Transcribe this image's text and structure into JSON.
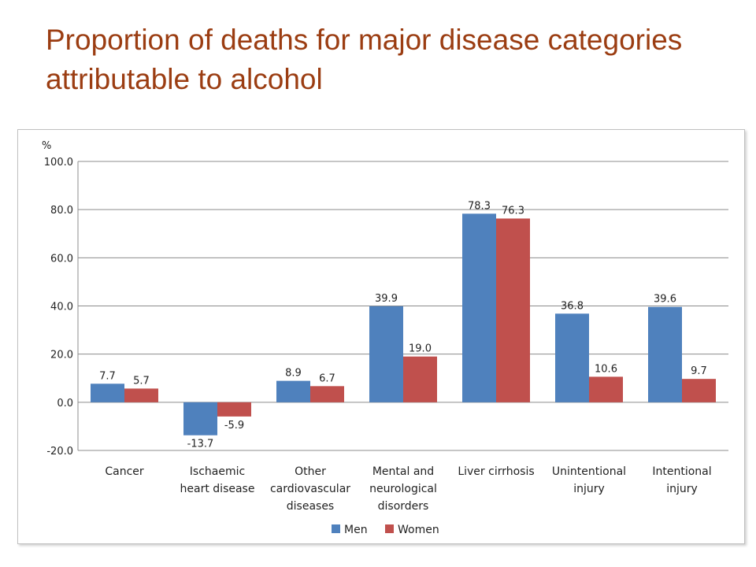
{
  "slide": {
    "title": "Proportion of deaths for major disease categories attributable to alcohol"
  },
  "chart_data": {
    "type": "bar",
    "title": "",
    "ylabel": "%",
    "xlabel": "",
    "ylim": [
      -20,
      100
    ],
    "yticks": [
      "100.0",
      "80.0",
      "60.0",
      "40.0",
      "20.0",
      "0.0",
      "-20.0"
    ],
    "grid": true,
    "legend_position": "bottom",
    "categories": [
      "Cancer",
      "Ischaemic heart disease",
      "Other cardiovascular diseases",
      "Mental and neurological disorders",
      "Liver cirrhosis",
      "Unintentional injury",
      "Intentional injury"
    ],
    "category_lines": [
      [
        "Cancer"
      ],
      [
        "Ischaemic",
        "heart disease"
      ],
      [
        "Other",
        "cardiovascular",
        "diseases"
      ],
      [
        "Mental and",
        "neurological",
        "disorders"
      ],
      [
        "Liver cirrhosis"
      ],
      [
        "Unintentional",
        "injury"
      ],
      [
        "Intentional",
        "injury"
      ]
    ],
    "series": [
      {
        "name": "Men",
        "color": "#4f81bd",
        "values": [
          7.7,
          -13.7,
          8.9,
          39.9,
          78.3,
          36.8,
          39.6
        ],
        "labels": [
          "7.7",
          "-13.7",
          "8.9",
          "39.9",
          "78.3",
          "36.8",
          "39.6"
        ]
      },
      {
        "name": "Women",
        "color": "#c0504d",
        "values": [
          5.7,
          -5.9,
          6.7,
          19.0,
          76.3,
          10.6,
          9.7
        ],
        "labels": [
          "5.7",
          "-5.9",
          "6.7",
          "19.0",
          "76.3",
          "10.6",
          "9.7"
        ]
      }
    ]
  }
}
